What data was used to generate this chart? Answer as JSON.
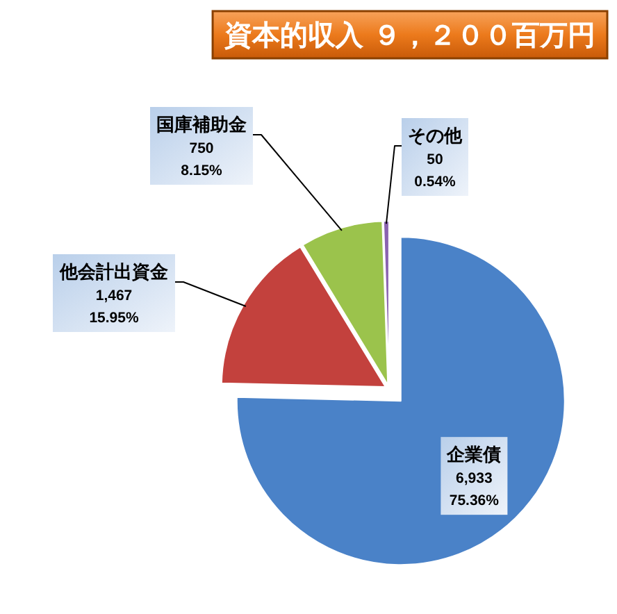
{
  "chart_data": {
    "type": "pie",
    "title": "資本的収入 ９，２００百万円",
    "categories": [
      "企業債",
      "他会計出資金",
      "国庫補助金",
      "その他"
    ],
    "values": [
      6933,
      1467,
      750,
      50
    ],
    "colors": [
      "#4a82c8",
      "#c3413d",
      "#9bc34c",
      "#8a63b0"
    ],
    "value_labels": [
      "6,933\n75.36%",
      "1,467\n15.95%",
      "750\n8.15%",
      "50\n0.54%"
    ]
  }
}
